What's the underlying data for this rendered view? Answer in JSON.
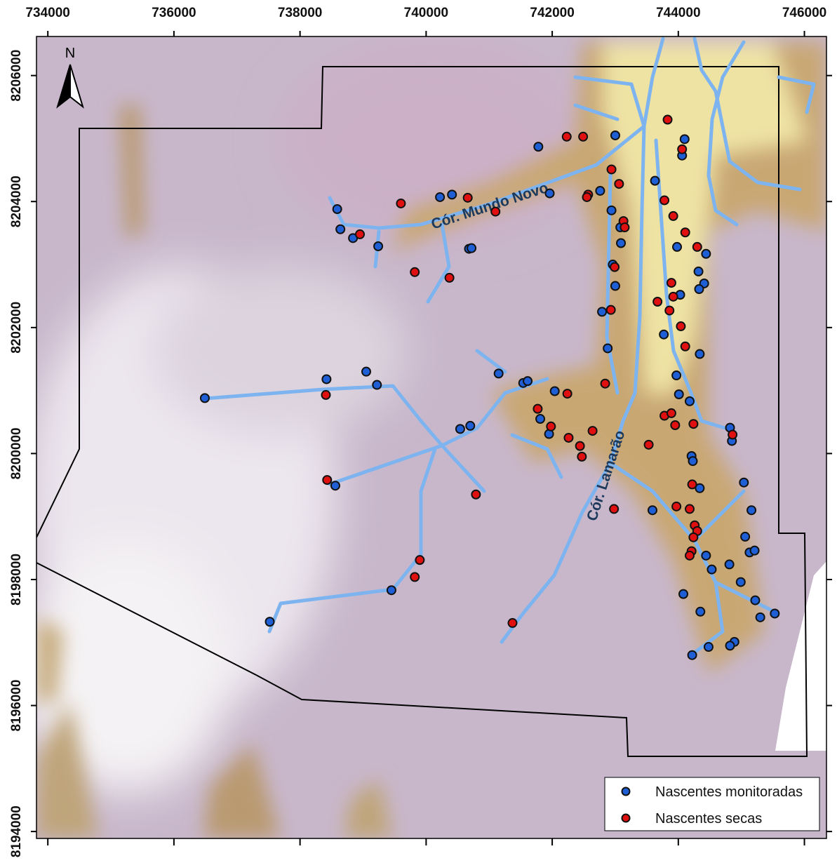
{
  "map": {
    "xlim": [
      733820,
      746350
    ],
    "ylim": [
      8193890,
      8206620
    ],
    "xticks": [
      734000,
      736000,
      738000,
      740000,
      742000,
      744000,
      746000
    ],
    "yticks": [
      8194000,
      8196000,
      8198000,
      8200000,
      8202000,
      8204000,
      8206000
    ],
    "north": "N",
    "labels": [
      "Cór. Mundo Novo",
      "Cór. Lamarão"
    ],
    "series": [
      {
        "name": "Nascentes monitoradas",
        "color": "#1f5fd6",
        "x": [
          741780,
          743000,
          744100,
          744060,
          743630,
          741960,
          742760,
          740220,
          740410,
          738590,
          738640,
          738840,
          739240,
          740680,
          740720,
          742940,
          743080,
          743090,
          742960,
          743000,
          743980,
          744440,
          744320,
          744410,
          744330,
          744030,
          742790,
          743770,
          742880,
          744340,
          739050,
          738420,
          739220,
          741150,
          741540,
          741610,
          742040,
          736490,
          743970,
          744010,
          744180,
          741810,
          741950,
          740540,
          740700,
          744820,
          744850,
          744210,
          744230,
          744340,
          738560,
          745040,
          743590,
          745160,
          745060,
          745130,
          745210,
          744440,
          744810,
          744530,
          744990,
          744080,
          745220,
          744350,
          745300,
          745530,
          737520,
          739450,
          744890,
          744820,
          744480,
          744220
        ],
        "y": [
          8204870,
          8205050,
          8204990,
          8204730,
          8204330,
          8204130,
          8204170,
          8204070,
          8204110,
          8203880,
          8203560,
          8203420,
          8203290,
          8203250,
          8203260,
          8203860,
          8203590,
          8203340,
          8203000,
          8202660,
          8203280,
          8203170,
          8202890,
          8202700,
          8202610,
          8202520,
          8202250,
          8201890,
          8201670,
          8201580,
          8201300,
          8201180,
          8201090,
          8201270,
          8201120,
          8201150,
          8200990,
          8200880,
          8201240,
          8200940,
          8200830,
          8200550,
          8200310,
          8200390,
          8200440,
          8200410,
          8200200,
          8199960,
          8199880,
          8199450,
          8199490,
          8199540,
          8199100,
          8199100,
          8198680,
          8198430,
          8198460,
          8198380,
          8198240,
          8198160,
          8197960,
          8197770,
          8197670,
          8197490,
          8197400,
          8197460,
          8197330,
          8197830,
          8197010,
          8196950,
          8196930,
          8196800
        ]
      },
      {
        "name": "Nascentes secas",
        "color": "#e01010",
        "x": [
          743830,
          742230,
          742490,
          744060,
          742940,
          743060,
          742570,
          742550,
          740660,
          739600,
          741100,
          743780,
          743920,
          744110,
          738950,
          743130,
          743150,
          744300,
          739820,
          740370,
          742990,
          743890,
          743920,
          743670,
          743860,
          742930,
          744040,
          744110,
          738410,
          742840,
          742240,
          741770,
          743780,
          743890,
          741980,
          742640,
          744240,
          743950,
          742260,
          742440,
          742470,
          743530,
          744860,
          738430,
          740790,
          742980,
          743970,
          744180,
          744220,
          744260,
          744300,
          744240,
          744210,
          744180,
          739900,
          739820,
          741370
        ],
        "y": [
          8205300,
          8205030,
          8205030,
          8204830,
          8204510,
          8204280,
          8204110,
          8204070,
          8204060,
          8203970,
          8203840,
          8204020,
          8203770,
          8203510,
          8203480,
          8203690,
          8203590,
          8203280,
          8202880,
          8202790,
          8202960,
          8202710,
          8202490,
          8202410,
          8202270,
          8202280,
          8202020,
          8201700,
          8200930,
          8201110,
          8200950,
          8200710,
          8200600,
          8200640,
          8200430,
          8200360,
          8200470,
          8200450,
          8200250,
          8200120,
          8199950,
          8200140,
          8200300,
          8199580,
          8199350,
          8199120,
          8199160,
          8199120,
          8199510,
          8198860,
          8198770,
          8198670,
          8198450,
          8198380,
          8198310,
          8198040,
          8197310
        ]
      }
    ]
  }
}
